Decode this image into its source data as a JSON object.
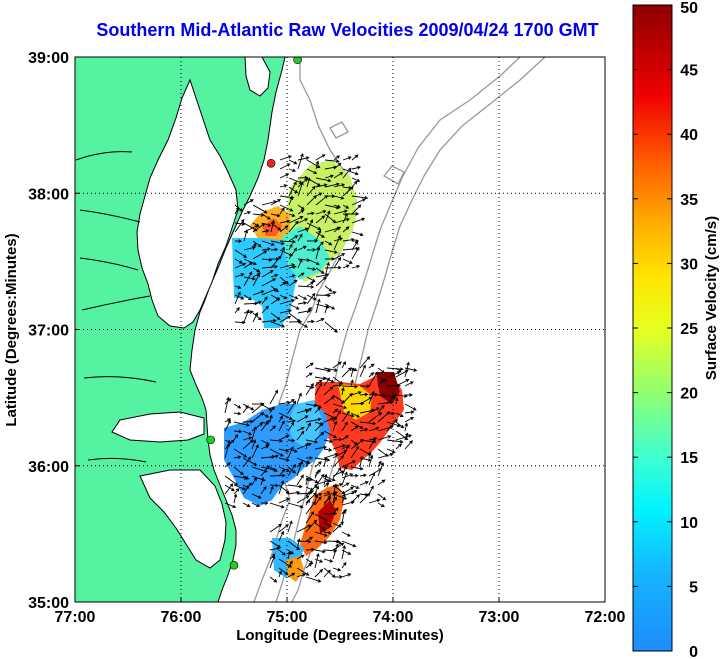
{
  "chart_data": {
    "type": "heatmap",
    "title": "Southern Mid-Atlantic Raw Velocities 2009/04/24 1700 GMT",
    "xlabel": "Longitude (Degrees:Minutes)",
    "ylabel": "Latitude (Degrees:Minutes)",
    "colorbar_label": "Surface Velocity (cm/s)",
    "x_ticks": [
      {
        "value": -77,
        "label": "77:00"
      },
      {
        "value": -76,
        "label": "76:00"
      },
      {
        "value": -75,
        "label": "75:00"
      },
      {
        "value": -74,
        "label": "74:00"
      },
      {
        "value": -73,
        "label": "73:00"
      },
      {
        "value": -72,
        "label": "72:00"
      }
    ],
    "y_ticks": [
      {
        "value": 35,
        "label": "35:00"
      },
      {
        "value": 36,
        "label": "36:00"
      },
      {
        "value": 37,
        "label": "37:00"
      },
      {
        "value": 38,
        "label": "38:00"
      },
      {
        "value": 39,
        "label": "39:00"
      }
    ],
    "xlim": [
      -77,
      -72
    ],
    "ylim": [
      35,
      39
    ],
    "colorbar_ticks": [
      0,
      5,
      10,
      15,
      20,
      25,
      30,
      35,
      40,
      45,
      50
    ],
    "clim": [
      0,
      50
    ],
    "grid": true,
    "grid_style": "dotted",
    "colormap": "jet",
    "land_color": "#55f2a2",
    "stations": [
      {
        "lon": -74.9,
        "lat": 38.98,
        "color": "#22cc22"
      },
      {
        "lon": -75.15,
        "lat": 38.22,
        "color": "#ee2222"
      },
      {
        "lon": -75.72,
        "lat": 36.19,
        "color": "#22cc22"
      },
      {
        "lon": -75.5,
        "lat": 35.27,
        "color": "#22cc22"
      }
    ]
  },
  "colors": {
    "title": "#0000ee",
    "grid": "#000000",
    "bathymetry": "#999999"
  }
}
